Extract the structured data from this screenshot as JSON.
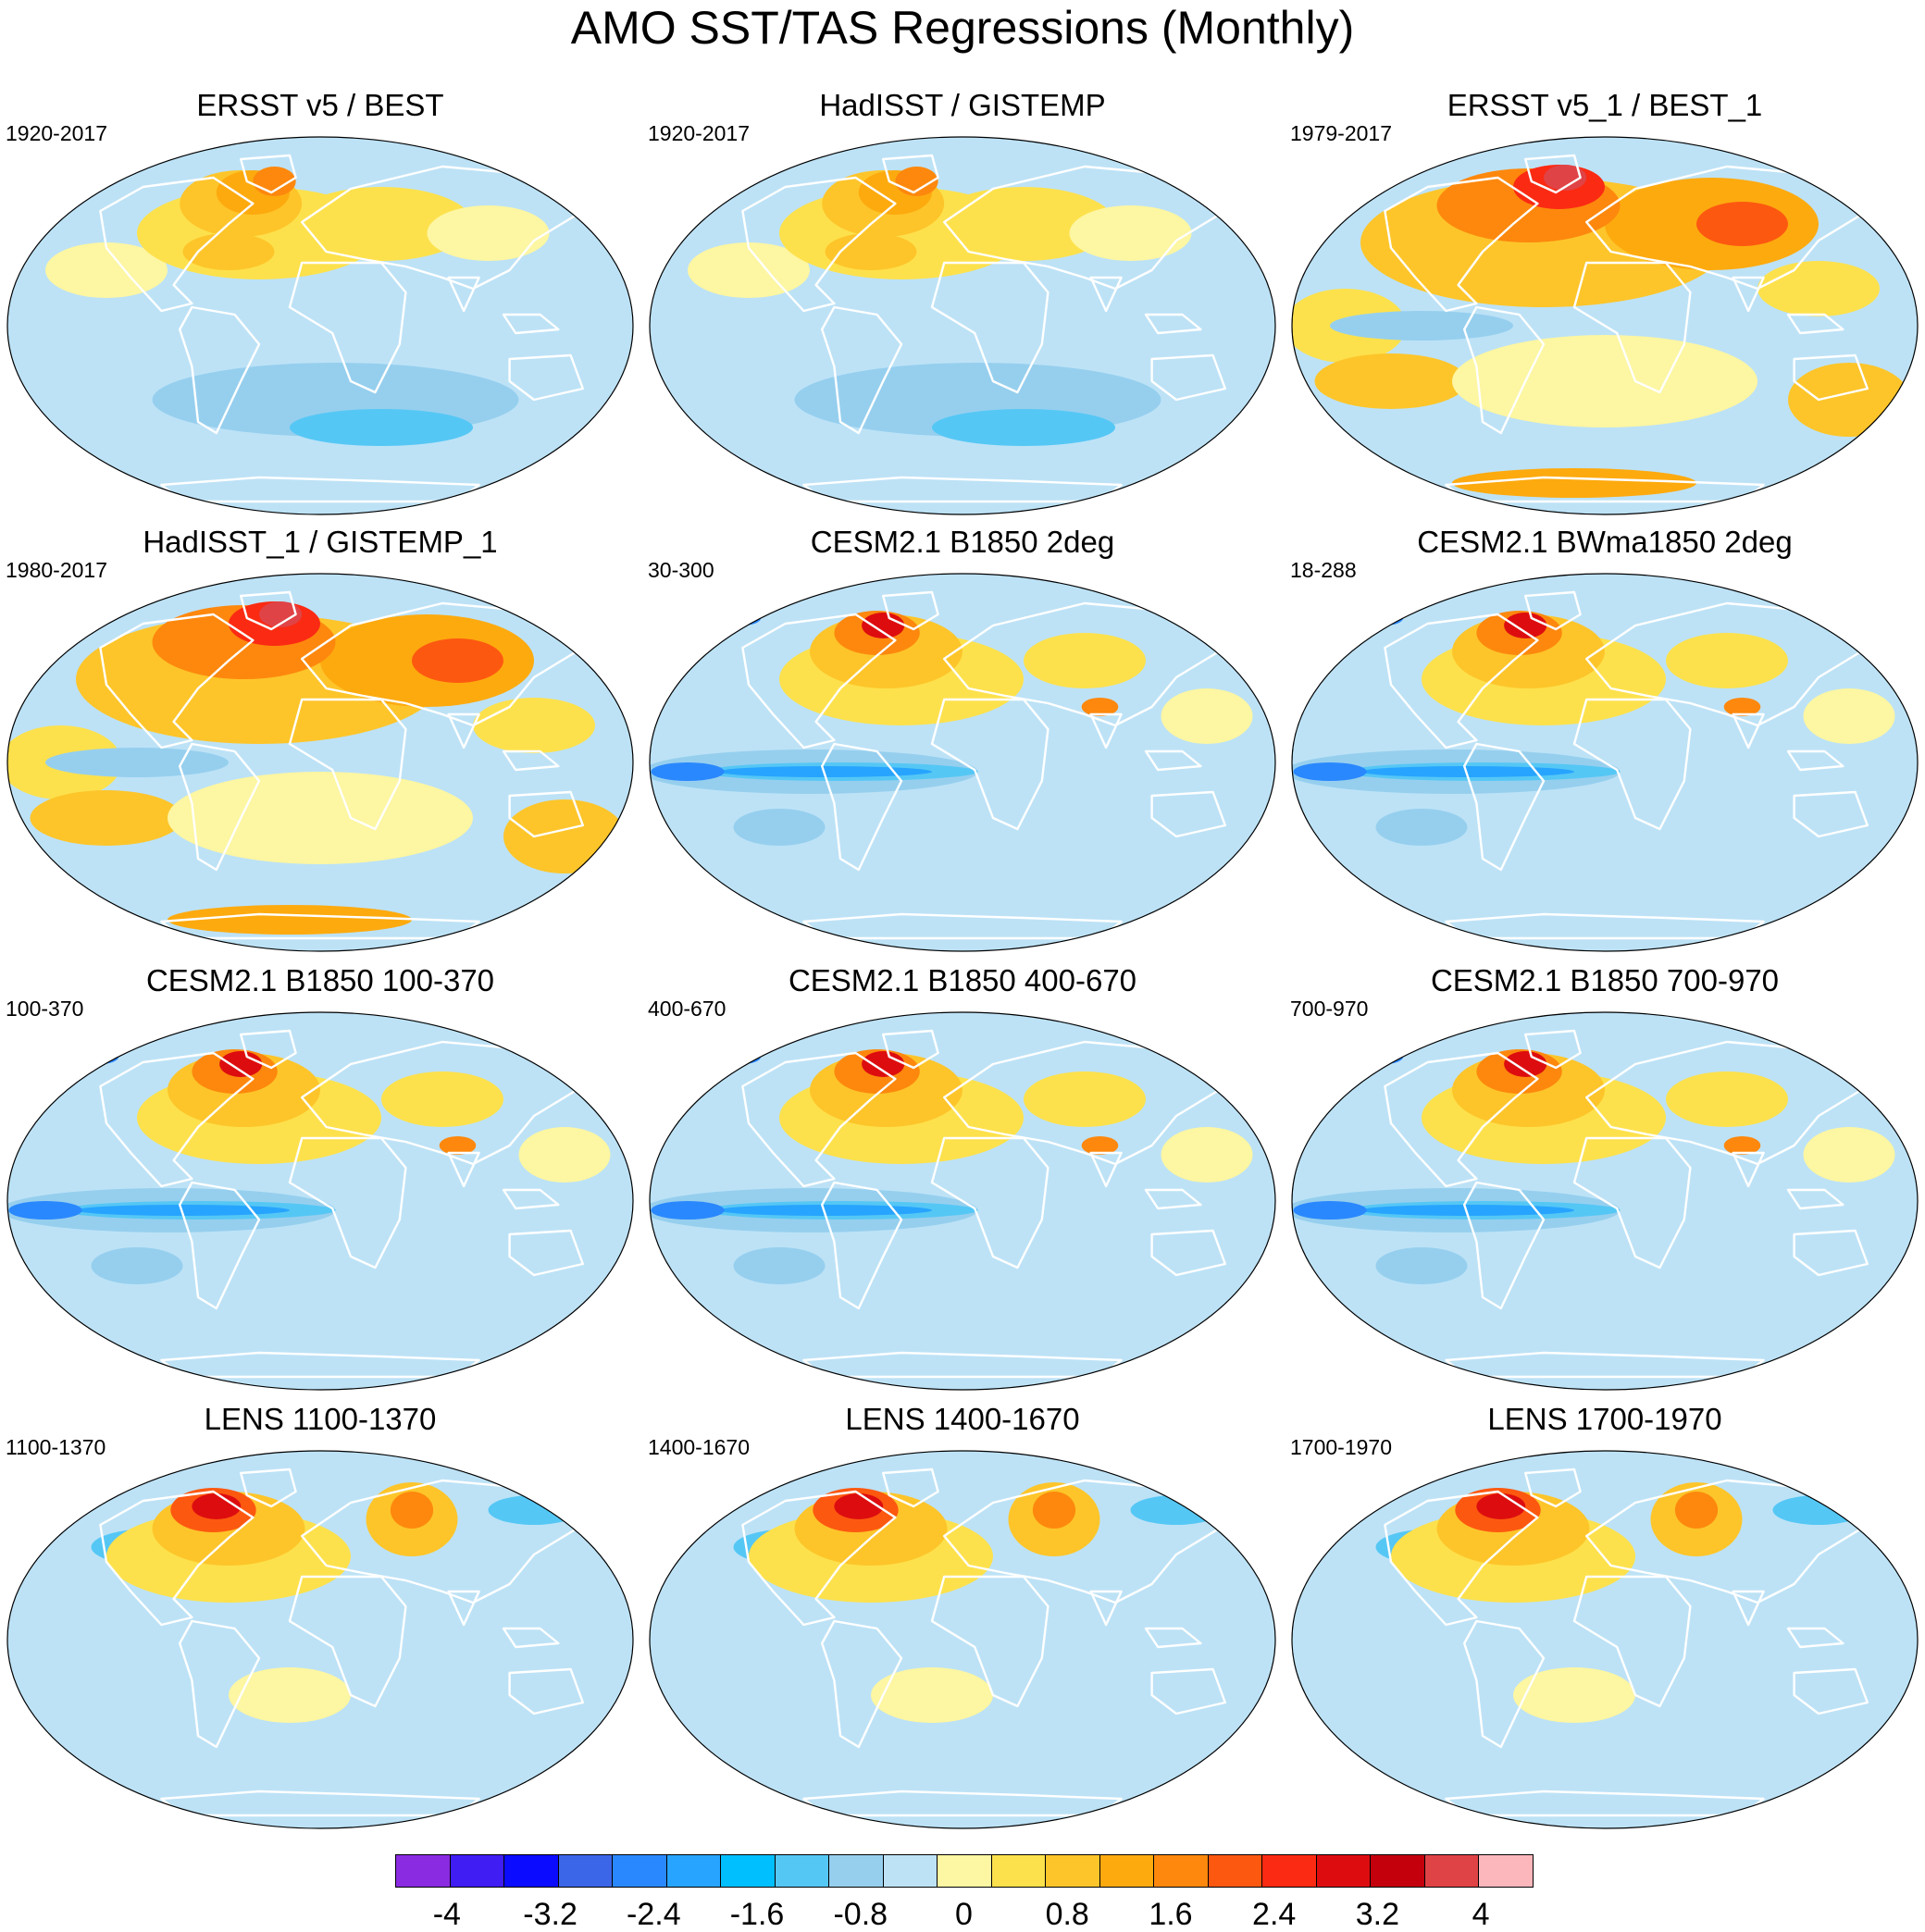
{
  "main_title": "AMO SST/TAS Regressions (Monthly)",
  "panels": [
    {
      "title": "ERSST v5 / BEST",
      "period": "1920-2017",
      "pattern": "obs"
    },
    {
      "title": "HadISST / GISTEMP",
      "period": "1920-2017",
      "pattern": "obs"
    },
    {
      "title": "ERSST v5_1 / BEST_1",
      "period": "1979-2017",
      "pattern": "recent"
    },
    {
      "title": "HadISST_1 / GISTEMP_1",
      "period": "1980-2017",
      "pattern": "recent"
    },
    {
      "title": "CESM2.1 B1850 2deg",
      "period": "30-300",
      "pattern": "model"
    },
    {
      "title": "CESM2.1 BWma1850 2deg",
      "period": "18-288",
      "pattern": "model"
    },
    {
      "title": "CESM2.1 B1850 100-370",
      "period": "100-370",
      "pattern": "model"
    },
    {
      "title": "CESM2.1 B1850 400-670",
      "period": "400-670",
      "pattern": "model"
    },
    {
      "title": "CESM2.1 B1850 700-970",
      "period": "700-970",
      "pattern": "model"
    },
    {
      "title": "LENS 1100-1370",
      "period": "1100-1370",
      "pattern": "lens"
    },
    {
      "title": "LENS 1400-1670",
      "period": "1400-1670",
      "pattern": "lens"
    },
    {
      "title": "LENS 1700-1970",
      "period": "1700-1970",
      "pattern": "lens"
    }
  ],
  "colorbar": {
    "colors": [
      "#8a2be2",
      "#3f1df3",
      "#0a0bff",
      "#3b66e8",
      "#2a88ff",
      "#27a4ff",
      "#00bfff",
      "#55c7f5",
      "#96cfee",
      "#bde2f6",
      "#fdf6a2",
      "#fde14c",
      "#fdc52a",
      "#fdaa0f",
      "#fd880d",
      "#fd5810",
      "#fb2a13",
      "#dd0d0f",
      "#c4000c",
      "#e04346",
      "#fbb7bb"
    ],
    "tick_labels": [
      "-4",
      "-3.2",
      "-2.4",
      "-1.6",
      "-0.8",
      "0",
      "0.8",
      "1.6",
      "2.4",
      "3.2",
      "4"
    ],
    "tick_values": [
      -4,
      -3.2,
      -2.4,
      -1.6,
      -0.8,
      0,
      0.8,
      1.6,
      2.4,
      3.2,
      4
    ],
    "min": -4.4,
    "max": 4.4
  }
}
